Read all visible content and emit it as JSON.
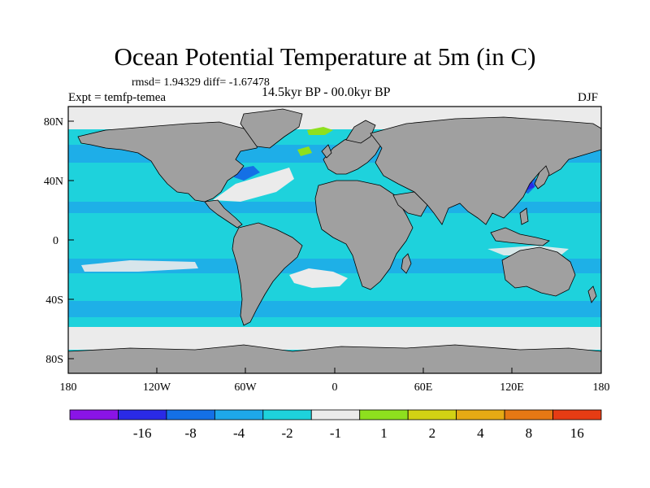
{
  "title": "Ocean Potential Temperature at 5m (in C)",
  "stats_line": "rmsd= 1.94329  diff= -1.67478",
  "experiment_label": "Expt = temfp-temea",
  "period_label": "14.5kyr BP - 00.0kyr BP",
  "season_label": "DJF",
  "chart_data": {
    "type": "heatmap",
    "title": "Ocean Potential Temperature at 5m (in C)",
    "variable": "Ocean potential temperature difference at 5m",
    "units": "C",
    "x_axis": {
      "range": [
        -180,
        180
      ],
      "ticks": [
        {
          "value": -180,
          "label": "180"
        },
        {
          "value": -120,
          "label": "120W"
        },
        {
          "value": -60,
          "label": "60W"
        },
        {
          "value": 0,
          "label": "0"
        },
        {
          "value": 60,
          "label": "60E"
        },
        {
          "value": 120,
          "label": "120E"
        },
        {
          "value": 180,
          "label": "180"
        }
      ]
    },
    "y_axis": {
      "range": [
        -90,
        90
      ],
      "ticks": [
        {
          "value": 80,
          "label": "80N"
        },
        {
          "value": 40,
          "label": "40N"
        },
        {
          "value": 0,
          "label": "0"
        },
        {
          "value": -40,
          "label": "40S"
        },
        {
          "value": -80,
          "label": "80S"
        }
      ]
    },
    "colorbar": {
      "levels": [
        {
          "label": "",
          "color": "#8a14e6"
        },
        {
          "label": "-16",
          "color": "#2a2ae6"
        },
        {
          "label": "-8",
          "color": "#1470e6"
        },
        {
          "label": "-4",
          "color": "#1ea8ea"
        },
        {
          "label": "-2",
          "color": "#1ed2dc"
        },
        {
          "label": "-1",
          "color": "#ebebeb"
        },
        {
          "label": "1",
          "color": "#8ee01e"
        },
        {
          "label": "2",
          "color": "#d2d214"
        },
        {
          "label": "4",
          "color": "#e6aa14"
        },
        {
          "label": "8",
          "color": "#e67814"
        },
        {
          "label": "16",
          "color": "#e63c14"
        }
      ]
    }
  },
  "colors": {
    "land": "#a0a0a0",
    "ocean_cyan": "#1ed2dc",
    "ocean_blue": "#1ea8ea",
    "ocean_dark": "#1470e6",
    "neutral": "#ebebeb"
  }
}
